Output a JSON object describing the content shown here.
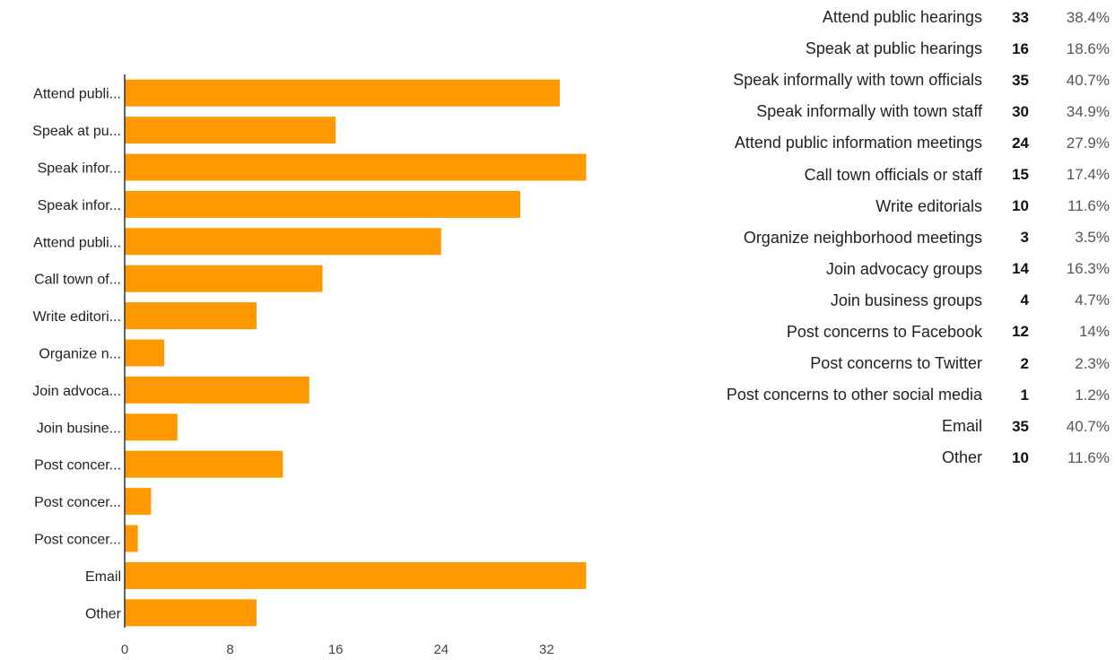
{
  "chart_data": {
    "type": "bar",
    "orientation": "horizontal",
    "bar_color": "#ff9900",
    "axis_line_color": "#333333",
    "categories": [
      "Attend publi...",
      "Speak at pu...",
      "Speak infor...",
      "Speak infor...",
      "Attend publi...",
      "Call town of...",
      "Write editori...",
      "Organize n...",
      "Join advoca...",
      "Join busine...",
      "Post concer...",
      "Post concer...",
      "Post concer...",
      "Email",
      "Other"
    ],
    "values": [
      33,
      16,
      35,
      30,
      24,
      15,
      10,
      3,
      14,
      4,
      12,
      2,
      1,
      35,
      10
    ],
    "xlim": [
      0,
      36
    ],
    "xticks": [
      0,
      8,
      16,
      24,
      32
    ],
    "grid": false,
    "legend": "none"
  },
  "summary_table": [
    {
      "label": "Attend public hearings",
      "count": "33",
      "percent": "38.4%"
    },
    {
      "label": "Speak at public hearings",
      "count": "16",
      "percent": "18.6%"
    },
    {
      "label": "Speak informally with town officials",
      "count": "35",
      "percent": "40.7%"
    },
    {
      "label": "Speak informally with town staff",
      "count": "30",
      "percent": "34.9%"
    },
    {
      "label": "Attend public information meetings",
      "count": "24",
      "percent": "27.9%"
    },
    {
      "label": "Call town officials or staff",
      "count": "15",
      "percent": "17.4%"
    },
    {
      "label": "Write editorials",
      "count": "10",
      "percent": "11.6%"
    },
    {
      "label": "Organize neighborhood meetings",
      "count": "3",
      "percent": "3.5%"
    },
    {
      "label": "Join advocacy groups",
      "count": "14",
      "percent": "16.3%"
    },
    {
      "label": "Join business groups",
      "count": "4",
      "percent": "4.7%"
    },
    {
      "label": "Post concerns to Facebook",
      "count": "12",
      "percent": "14%"
    },
    {
      "label": "Post concerns to Twitter",
      "count": "2",
      "percent": "2.3%"
    },
    {
      "label": "Post concerns to other social media",
      "count": "1",
      "percent": "1.2%"
    },
    {
      "label": "Email",
      "count": "35",
      "percent": "40.7%"
    },
    {
      "label": "Other",
      "count": "10",
      "percent": "11.6%"
    }
  ]
}
